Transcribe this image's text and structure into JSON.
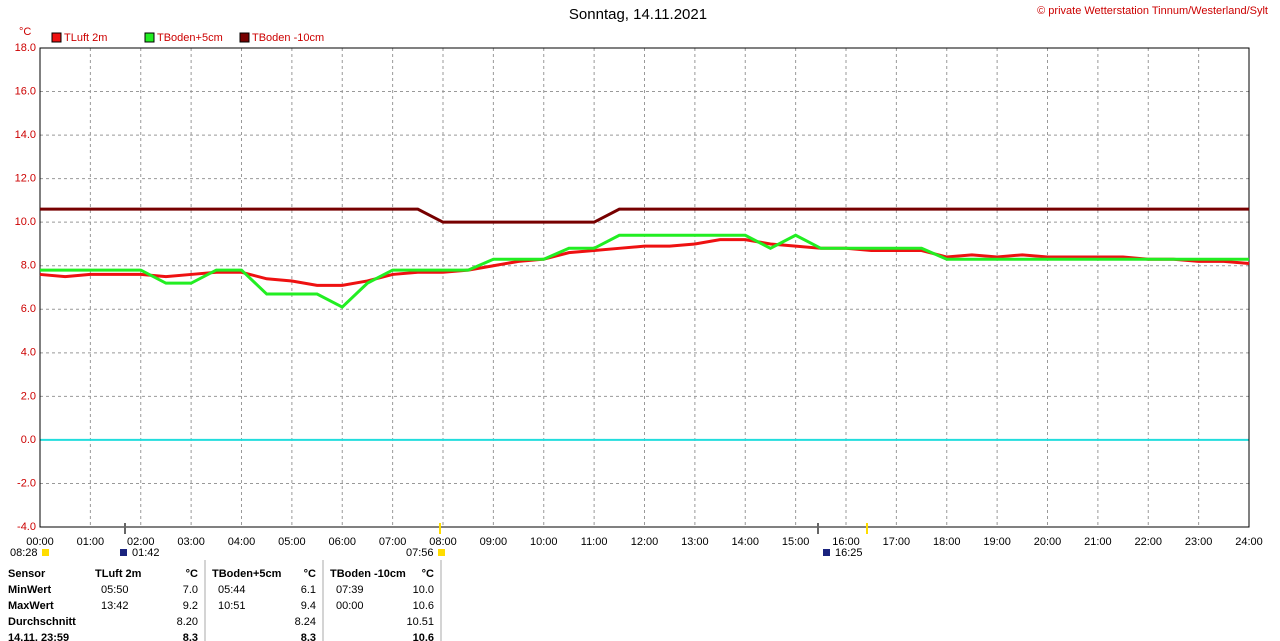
{
  "chart_data": {
    "type": "line",
    "title": "Sonntag, 14.11.2021",
    "source": "© private Wetterstation Tinnum/Westerland/Sylt",
    "y_unit": "°C",
    "x": [
      0,
      0.5,
      1,
      1.5,
      2,
      2.5,
      3,
      3.5,
      4,
      4.5,
      5,
      5.5,
      6,
      6.5,
      7,
      7.5,
      8,
      8.5,
      9,
      9.5,
      10,
      10.5,
      11,
      11.5,
      12,
      12.5,
      13,
      13.5,
      14,
      14.5,
      15,
      15.5,
      16,
      16.5,
      17,
      17.5,
      18,
      18.5,
      19,
      19.5,
      20,
      20.5,
      21,
      21.5,
      22,
      22.5,
      23,
      23.5,
      24
    ],
    "series": [
      {
        "name": "TLuft 2m",
        "color": "#ee1111",
        "values": [
          7.6,
          7.5,
          7.6,
          7.6,
          7.6,
          7.5,
          7.6,
          7.7,
          7.7,
          7.4,
          7.3,
          7.1,
          7.1,
          7.3,
          7.6,
          7.7,
          7.7,
          7.8,
          8.0,
          8.2,
          8.3,
          8.6,
          8.7,
          8.8,
          8.9,
          8.9,
          9.0,
          9.2,
          9.2,
          9.0,
          8.9,
          8.8,
          8.8,
          8.7,
          8.7,
          8.7,
          8.4,
          8.5,
          8.4,
          8.5,
          8.4,
          8.4,
          8.4,
          8.4,
          8.3,
          8.3,
          8.2,
          8.2,
          8.1
        ]
      },
      {
        "name": "TBoden+5cm",
        "color": "#22ee22",
        "values": [
          7.8,
          7.8,
          7.8,
          7.8,
          7.8,
          7.2,
          7.2,
          7.8,
          7.8,
          6.7,
          6.7,
          6.7,
          6.1,
          7.2,
          7.8,
          7.8,
          7.8,
          7.8,
          8.3,
          8.3,
          8.3,
          8.8,
          8.8,
          9.4,
          9.4,
          9.4,
          9.4,
          9.4,
          9.4,
          8.8,
          9.4,
          8.8,
          8.8,
          8.8,
          8.8,
          8.8,
          8.3,
          8.3,
          8.3,
          8.3,
          8.3,
          8.3,
          8.3,
          8.3,
          8.3,
          8.3,
          8.3,
          8.3,
          8.3
        ]
      },
      {
        "name": "TBoden -10cm",
        "color": "#770000",
        "values": [
          10.6,
          10.6,
          10.6,
          10.6,
          10.6,
          10.6,
          10.6,
          10.6,
          10.6,
          10.6,
          10.6,
          10.6,
          10.6,
          10.6,
          10.6,
          10.6,
          10.0,
          10.0,
          10.0,
          10.0,
          10.0,
          10.0,
          10.0,
          10.6,
          10.6,
          10.6,
          10.6,
          10.6,
          10.6,
          10.6,
          10.6,
          10.6,
          10.6,
          10.6,
          10.6,
          10.6,
          10.6,
          10.6,
          10.6,
          10.6,
          10.6,
          10.6,
          10.6,
          10.6,
          10.6,
          10.6,
          10.6,
          10.6,
          10.6
        ]
      }
    ],
    "xlim": [
      0,
      24
    ],
    "xticks": [
      {
        "value": 0,
        "label": "00:00"
      },
      {
        "value": 1,
        "label": "01:00"
      },
      {
        "value": 2,
        "label": "02:00"
      },
      {
        "value": 3,
        "label": "03:00"
      },
      {
        "value": 4,
        "label": "04:00"
      },
      {
        "value": 5,
        "label": "05:00"
      },
      {
        "value": 6,
        "label": "06:00"
      },
      {
        "value": 7,
        "label": "07:00"
      },
      {
        "value": 8,
        "label": "08:00"
      },
      {
        "value": 9,
        "label": "09:00"
      },
      {
        "value": 10,
        "label": "10:00"
      },
      {
        "value": 11,
        "label": "11:00"
      },
      {
        "value": 12,
        "label": "12:00"
      },
      {
        "value": 13,
        "label": "13:00"
      },
      {
        "value": 14,
        "label": "14:00"
      },
      {
        "value": 15,
        "label": "15:00"
      },
      {
        "value": 16,
        "label": "16:00"
      },
      {
        "value": 17,
        "label": "17:00"
      },
      {
        "value": 18,
        "label": "18:00"
      },
      {
        "value": 19,
        "label": "19:00"
      },
      {
        "value": 20,
        "label": "20:00"
      },
      {
        "value": 21,
        "label": "21:00"
      },
      {
        "value": 22,
        "label": "22:00"
      },
      {
        "value": 23,
        "label": "23:00"
      },
      {
        "value": 24,
        "label": "24:00"
      }
    ],
    "ylim": [
      -4,
      18
    ],
    "yticks": [
      {
        "value": -4,
        "label": "-4.0"
      },
      {
        "value": -2,
        "label": "-2.0"
      },
      {
        "value": 0,
        "label": "0.0"
      },
      {
        "value": 2,
        "label": "2.0"
      },
      {
        "value": 4,
        "label": "4.0"
      },
      {
        "value": 6,
        "label": "6.0"
      },
      {
        "value": 8,
        "label": "8.0"
      },
      {
        "value": 10,
        "label": "10.0"
      },
      {
        "value": 12,
        "label": "12.0"
      },
      {
        "value": 14,
        "label": "14.0"
      },
      {
        "value": 16,
        "label": "16.0"
      },
      {
        "value": 18,
        "label": "18.0"
      }
    ],
    "grid": true,
    "events": [
      "08:28",
      "01:42",
      "07:56",
      "16:25"
    ]
  },
  "table": {
    "header": [
      "Sensor",
      "TLuft 2m",
      "°C",
      "TBoden+5cm",
      "°C",
      "TBoden -10cm",
      "°C"
    ],
    "rows": [
      [
        "MinWert",
        "05:50",
        "7.0",
        "05:44",
        "6.1",
        "07:39",
        "10.0"
      ],
      [
        "MaxWert",
        "13:42",
        "9.2",
        "10:51",
        "9.4",
        "00:00",
        "10.6"
      ],
      [
        "Durchschnitt",
        null,
        "8.20",
        null,
        "8.24",
        null,
        "10.51"
      ],
      [
        "14.11. 23:59",
        null,
        "8.3",
        null,
        "8.3",
        null,
        "10.6"
      ]
    ]
  }
}
